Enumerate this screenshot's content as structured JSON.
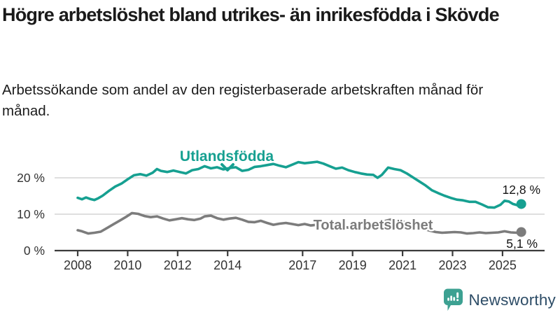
{
  "header": {
    "title": "Högre arbetslöshet bland utrikes- än inrikesfödda i Skövde",
    "subtitle": "Arbetssökande som andel av den registerbaserade arbetskraften månad för månad."
  },
  "chart_data": {
    "type": "line",
    "title": "Högre arbetslöshet bland utrikes- än inrikesfödda i Skövde",
    "xlabel": "",
    "ylabel": "",
    "unit": "%",
    "grid": "horizontal",
    "legend_position": "inline-labels",
    "x_axis": {
      "ticks": [
        2008,
        2010,
        2012,
        2014,
        2017,
        2019,
        2021,
        2023,
        2025
      ],
      "range": [
        2008,
        2025.9
      ]
    },
    "y_axis": {
      "ticks": [
        0,
        10,
        20
      ],
      "tick_labels": [
        "0 %",
        "10 %",
        "20 %"
      ],
      "range": [
        0,
        26
      ]
    },
    "series": [
      {
        "name": "Utlandsfödda",
        "color": "#16a091",
        "end_label": "12,8 %",
        "end_value": 12.8,
        "points": [
          [
            2008.0,
            14.5
          ],
          [
            2008.17,
            14.1
          ],
          [
            2008.33,
            14.6
          ],
          [
            2008.5,
            14.2
          ],
          [
            2008.67,
            13.9
          ],
          [
            2008.83,
            14.4
          ],
          [
            2009.0,
            15.1
          ],
          [
            2009.25,
            16.4
          ],
          [
            2009.5,
            17.6
          ],
          [
            2009.75,
            18.4
          ],
          [
            2010.0,
            19.6
          ],
          [
            2010.25,
            20.7
          ],
          [
            2010.5,
            21.0
          ],
          [
            2010.75,
            20.6
          ],
          [
            2011.0,
            21.4
          ],
          [
            2011.17,
            22.4
          ],
          [
            2011.33,
            21.9
          ],
          [
            2011.58,
            21.6
          ],
          [
            2011.83,
            22.0
          ],
          [
            2012.08,
            21.6
          ],
          [
            2012.33,
            21.2
          ],
          [
            2012.58,
            22.1
          ],
          [
            2012.83,
            22.4
          ],
          [
            2013.08,
            23.2
          ],
          [
            2013.33,
            22.6
          ],
          [
            2013.58,
            22.9
          ],
          [
            2013.83,
            22.3
          ],
          [
            2014.08,
            22.7
          ],
          [
            2014.33,
            22.9
          ],
          [
            2014.58,
            21.9
          ],
          [
            2014.83,
            22.2
          ],
          [
            2015.08,
            23.0
          ],
          [
            2015.33,
            23.2
          ],
          [
            2015.58,
            23.5
          ],
          [
            2015.83,
            23.8
          ],
          [
            2016.08,
            23.3
          ],
          [
            2016.33,
            22.9
          ],
          [
            2016.58,
            23.6
          ],
          [
            2016.83,
            24.3
          ],
          [
            2017.08,
            24.0
          ],
          [
            2017.33,
            24.2
          ],
          [
            2017.58,
            24.4
          ],
          [
            2017.83,
            23.9
          ],
          [
            2018.08,
            23.2
          ],
          [
            2018.33,
            22.5
          ],
          [
            2018.58,
            22.8
          ],
          [
            2018.83,
            22.1
          ],
          [
            2019.08,
            21.6
          ],
          [
            2019.33,
            21.2
          ],
          [
            2019.58,
            20.9
          ],
          [
            2019.83,
            20.8
          ],
          [
            2020.0,
            20.0
          ],
          [
            2020.17,
            20.8
          ],
          [
            2020.42,
            22.8
          ],
          [
            2020.67,
            22.4
          ],
          [
            2020.92,
            22.1
          ],
          [
            2021.17,
            21.2
          ],
          [
            2021.42,
            20.1
          ],
          [
            2021.67,
            19.0
          ],
          [
            2021.92,
            17.9
          ],
          [
            2022.17,
            16.6
          ],
          [
            2022.42,
            15.8
          ],
          [
            2022.67,
            15.1
          ],
          [
            2022.92,
            14.5
          ],
          [
            2023.17,
            14.0
          ],
          [
            2023.42,
            13.8
          ],
          [
            2023.67,
            13.4
          ],
          [
            2023.92,
            13.4
          ],
          [
            2024.17,
            12.7
          ],
          [
            2024.42,
            11.9
          ],
          [
            2024.67,
            11.8
          ],
          [
            2024.92,
            12.6
          ],
          [
            2025.08,
            13.7
          ],
          [
            2025.25,
            13.5
          ],
          [
            2025.42,
            12.8
          ],
          [
            2025.58,
            12.5
          ],
          [
            2025.75,
            12.8
          ]
        ]
      },
      {
        "name": "Total arbetslöshet",
        "color": "#7c7c7c",
        "end_label": "5,1 %",
        "end_value": 5.1,
        "points": [
          [
            2008.0,
            5.6
          ],
          [
            2008.17,
            5.3
          ],
          [
            2008.42,
            4.7
          ],
          [
            2008.67,
            4.9
          ],
          [
            2008.92,
            5.2
          ],
          [
            2009.17,
            6.2
          ],
          [
            2009.42,
            7.2
          ],
          [
            2009.67,
            8.2
          ],
          [
            2009.92,
            9.2
          ],
          [
            2010.17,
            10.3
          ],
          [
            2010.42,
            10.1
          ],
          [
            2010.67,
            9.5
          ],
          [
            2010.92,
            9.2
          ],
          [
            2011.17,
            9.4
          ],
          [
            2011.42,
            8.8
          ],
          [
            2011.67,
            8.3
          ],
          [
            2011.92,
            8.6
          ],
          [
            2012.17,
            8.9
          ],
          [
            2012.42,
            8.6
          ],
          [
            2012.67,
            8.4
          ],
          [
            2012.92,
            8.8
          ],
          [
            2013.08,
            9.4
          ],
          [
            2013.33,
            9.6
          ],
          [
            2013.58,
            8.9
          ],
          [
            2013.83,
            8.5
          ],
          [
            2014.08,
            8.8
          ],
          [
            2014.33,
            9.0
          ],
          [
            2014.58,
            8.5
          ],
          [
            2014.83,
            7.9
          ],
          [
            2015.08,
            7.8
          ],
          [
            2015.33,
            8.2
          ],
          [
            2015.58,
            7.6
          ],
          [
            2015.83,
            7.1
          ],
          [
            2016.08,
            7.4
          ],
          [
            2016.33,
            7.6
          ],
          [
            2016.58,
            7.3
          ],
          [
            2016.83,
            7.0
          ],
          [
            2017.08,
            7.3
          ],
          [
            2017.33,
            6.9
          ],
          [
            2017.58,
            7.1
          ],
          [
            2017.83,
            6.8
          ],
          [
            2018.08,
            6.6
          ],
          [
            2018.33,
            6.4
          ],
          [
            2018.58,
            6.6
          ],
          [
            2018.83,
            6.3
          ],
          [
            2019.08,
            6.2
          ],
          [
            2019.33,
            6.3
          ],
          [
            2019.58,
            6.4
          ],
          [
            2019.83,
            6.5
          ],
          [
            2020.08,
            7.2
          ],
          [
            2020.33,
            8.2
          ],
          [
            2020.58,
            8.6
          ],
          [
            2020.83,
            8.2
          ],
          [
            2021.08,
            7.8
          ],
          [
            2021.33,
            7.2
          ],
          [
            2021.58,
            6.6
          ],
          [
            2021.83,
            6.0
          ],
          [
            2022.08,
            5.5
          ],
          [
            2022.33,
            5.1
          ],
          [
            2022.58,
            4.9
          ],
          [
            2022.83,
            5.0
          ],
          [
            2023.08,
            5.1
          ],
          [
            2023.33,
            5.0
          ],
          [
            2023.58,
            4.7
          ],
          [
            2023.83,
            4.8
          ],
          [
            2024.08,
            5.0
          ],
          [
            2024.33,
            4.8
          ],
          [
            2024.58,
            4.9
          ],
          [
            2024.83,
            5.0
          ],
          [
            2025.08,
            5.3
          ],
          [
            2025.33,
            5.0
          ],
          [
            2025.58,
            4.9
          ],
          [
            2025.75,
            5.1
          ]
        ]
      }
    ]
  },
  "colors": {
    "grid": "#cccccc",
    "axis": "#3c3c3c",
    "text": "#333333"
  },
  "footer": {
    "brand": "Newsworthy",
    "brand_color": "#2e4d67",
    "icon_color": "#3da192"
  }
}
